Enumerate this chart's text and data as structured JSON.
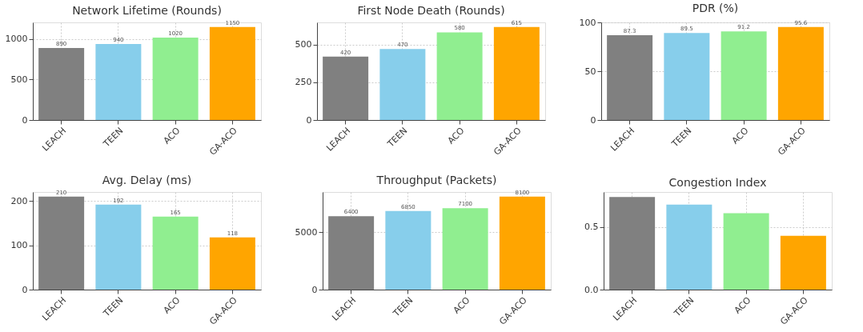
{
  "chart_data": [
    {
      "type": "bar",
      "title": "Network Lifetime (Rounds)",
      "categories": [
        "LEACH",
        "TEEN",
        "ACO",
        "GA-ACO"
      ],
      "values": [
        890,
        940,
        1020,
        1150
      ],
      "colors": [
        "#808080",
        "#87ceeb",
        "#90ee90",
        "#ffa500"
      ],
      "ylim": [
        0,
        1207.5
      ],
      "yticks": [
        0,
        500,
        1000
      ],
      "grid": true,
      "data_labels": true
    },
    {
      "type": "bar",
      "title": "First Node Death (Rounds)",
      "categories": [
        "LEACH",
        "TEEN",
        "ACO",
        "GA-ACO"
      ],
      "values": [
        420,
        470,
        580,
        615
      ],
      "colors": [
        "#808080",
        "#87ceeb",
        "#90ee90",
        "#ffa500"
      ],
      "ylim": [
        0,
        645.75
      ],
      "yticks": [
        0,
        250,
        500
      ],
      "grid": true,
      "data_labels": true
    },
    {
      "type": "bar",
      "title": "PDR (%)",
      "categories": [
        "LEACH",
        "TEEN",
        "ACO",
        "GA-ACO"
      ],
      "values": [
        87.3,
        89.5,
        91.2,
        95.6
      ],
      "colors": [
        "#808080",
        "#87ceeb",
        "#90ee90",
        "#ffa500"
      ],
      "ylim": [
        0,
        100.38
      ],
      "yticks": [
        0,
        50,
        100
      ],
      "grid": true,
      "data_labels": true
    },
    {
      "type": "bar",
      "title": "Avg. Delay (ms)",
      "categories": [
        "LEACH",
        "TEEN",
        "ACO",
        "GA-ACO"
      ],
      "values": [
        210,
        192,
        165,
        118
      ],
      "colors": [
        "#808080",
        "#87ceeb",
        "#90ee90",
        "#ffa500"
      ],
      "ylim": [
        0,
        220.5
      ],
      "yticks": [
        0,
        100,
        200
      ],
      "grid": true,
      "data_labels": true
    },
    {
      "type": "bar",
      "title": "Throughput (Packets)",
      "categories": [
        "LEACH",
        "TEEN",
        "ACO",
        "GA-ACO"
      ],
      "values": [
        6400,
        6850,
        7100,
        8100
      ],
      "colors": [
        "#808080",
        "#87ceeb",
        "#90ee90",
        "#ffa500"
      ],
      "ylim": [
        0,
        8505
      ],
      "yticks": [
        0,
        5000
      ],
      "grid": true,
      "data_labels": true
    },
    {
      "type": "bar",
      "title": "Congestion Index",
      "categories": [
        "LEACH",
        "TEEN",
        "ACO",
        "GA-ACO"
      ],
      "values": [
        0.74,
        0.68,
        0.61,
        0.43
      ],
      "colors": [
        "#808080",
        "#87ceeb",
        "#90ee90",
        "#ffa500"
      ],
      "ylim": [
        0,
        0.78
      ],
      "yticks": [
        {
          "value": 0,
          "label": "0.0"
        },
        0.5
      ],
      "grid": true
    }
  ]
}
